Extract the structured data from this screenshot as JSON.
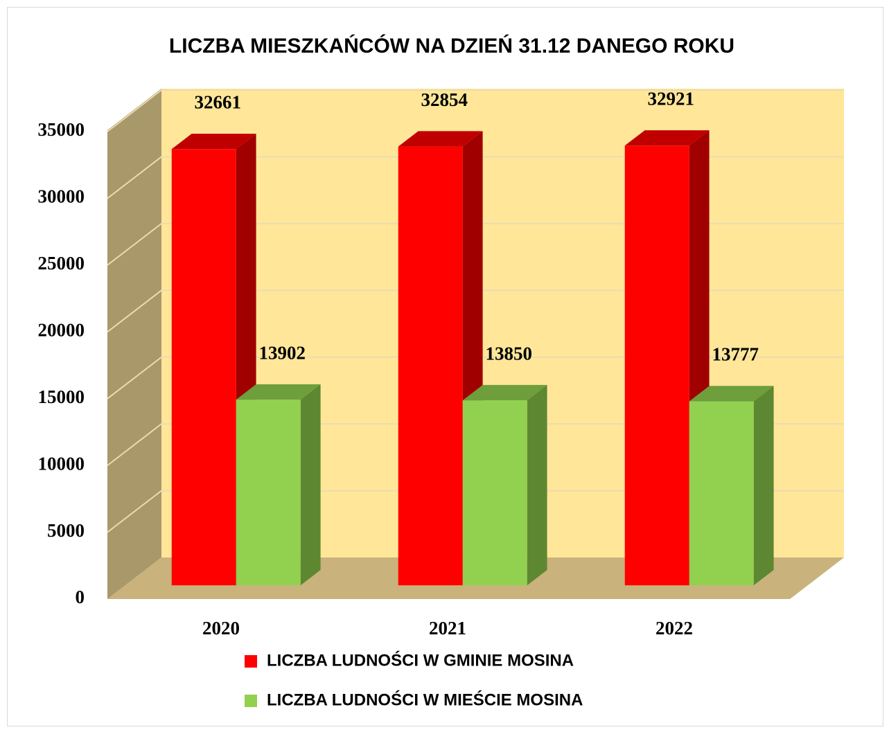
{
  "chart_data": {
    "type": "bar3d",
    "title": "LICZBA MIESZKAŃCÓW NA DZIEŃ 31.12 DANEGO ROKU",
    "categories": [
      "2020",
      "2021",
      "2022"
    ],
    "series": [
      {
        "name": "LICZBA LUDNOŚCI W GMINIE MOSINA",
        "color": "#ff0000",
        "values": [
          32661,
          32854,
          32921
        ]
      },
      {
        "name": "LICZBA LUDNOŚCI W MIEŚCIE MOSINA",
        "color": "#92d050",
        "values": [
          13902,
          13850,
          13777
        ]
      }
    ],
    "ylim": [
      0,
      35000
    ],
    "yticks": [
      0,
      5000,
      10000,
      15000,
      20000,
      25000,
      30000,
      35000
    ],
    "grid": true,
    "legend": "bottom"
  }
}
